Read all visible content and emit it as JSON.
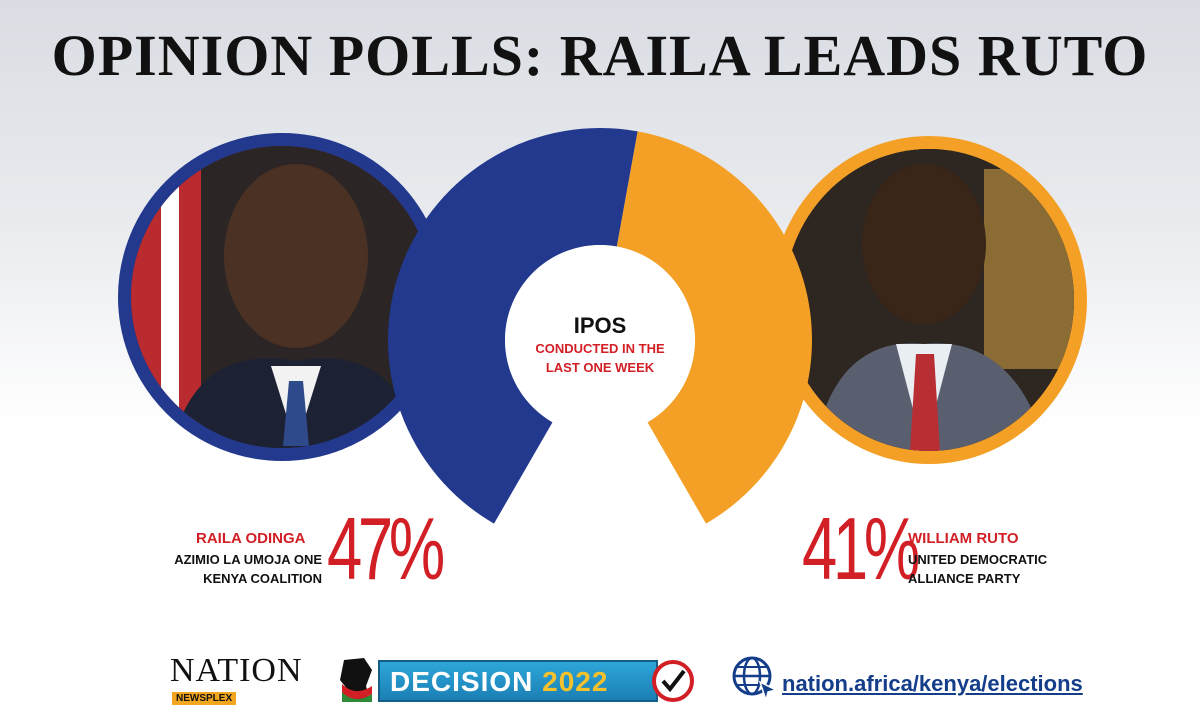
{
  "title": "OPINION POLLS: RAILA LEADS RUTO",
  "center": {
    "main": "IPOS",
    "sub_line1": "CONDUCTED  IN THE",
    "sub_line2": "LAST ONE WEEK"
  },
  "candidates": [
    {
      "name": "RAILA ODINGA",
      "party_line1": "AZIMIO LA UMOJA ONE",
      "party_line2": "KENYA COALITION",
      "percent_label": "47%",
      "color": "#22398e"
    },
    {
      "name": "WILLIAM RUTO",
      "party_line1": "UNITED DEMOCRATIC",
      "party_line2": "ALLIANCE PARTY",
      "percent_label": "41%",
      "color": "#f4a026"
    }
  ],
  "chart_data": {
    "type": "pie",
    "title": "OPINION POLLS: RAILA LEADS RUTO",
    "categories": [
      "RAILA ODINGA",
      "WILLIAM RUTO"
    ],
    "values": [
      47,
      41
    ],
    "colors": [
      "#22398e",
      "#f4a026"
    ],
    "style": "partial donut"
  },
  "footer": {
    "nation": "NATION",
    "newsplex": "NEWSPLEX",
    "decision": "DECISION",
    "decision_year": "2022",
    "url": "nation.africa/kenya/elections"
  },
  "icons": [
    "globe-cursor-icon",
    "check-icon",
    "kenya-map-icon"
  ]
}
